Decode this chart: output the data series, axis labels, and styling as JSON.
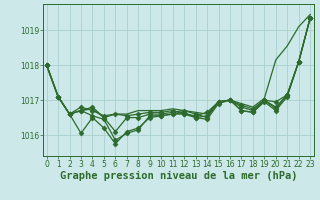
{
  "x": [
    0,
    1,
    2,
    3,
    4,
    5,
    6,
    7,
    8,
    9,
    10,
    11,
    12,
    13,
    14,
    15,
    16,
    17,
    18,
    19,
    20,
    21,
    22,
    23
  ],
  "series_with_markers": [
    [
      1018.0,
      1017.1,
      1016.6,
      1016.8,
      1016.7,
      1016.55,
      1016.6,
      1016.55,
      1016.6,
      1016.65,
      1016.65,
      1016.7,
      1016.6,
      1016.55,
      1016.65,
      1016.95,
      1017.0,
      1016.85,
      1016.75,
      1017.0,
      1016.95,
      1017.15,
      1018.1,
      1019.35
    ],
    [
      1018.0,
      1017.1,
      1016.6,
      1016.05,
      1016.5,
      1016.2,
      1015.75,
      1016.1,
      1016.2,
      1016.5,
      1016.55,
      1016.6,
      1016.6,
      1016.5,
      1016.45,
      1016.9,
      1017.0,
      1016.8,
      1016.7,
      1017.0,
      1016.75,
      1017.15,
      1018.1,
      1019.35
    ],
    [
      1018.0,
      1017.1,
      1016.6,
      1016.7,
      1016.8,
      1016.5,
      1016.1,
      1016.5,
      1016.5,
      1016.6,
      1016.6,
      1016.65,
      1016.7,
      1016.6,
      1016.5,
      1016.95,
      1017.0,
      1016.7,
      1016.65,
      1016.95,
      1016.7,
      1017.1,
      1018.1,
      1019.35
    ],
    [
      1018.0,
      1017.1,
      1016.6,
      1016.7,
      1016.55,
      1016.45,
      1015.85,
      1016.05,
      1016.15,
      1016.55,
      1016.55,
      1016.6,
      1016.65,
      1016.5,
      1016.55,
      1016.95,
      1017.0,
      1016.7,
      1016.65,
      1017.0,
      1016.8,
      1017.15,
      1018.1,
      1019.35
    ]
  ],
  "series_no_marker": [
    1018.0,
    1017.1,
    1016.6,
    1016.7,
    1016.75,
    1016.5,
    1016.6,
    1016.6,
    1016.7,
    1016.7,
    1016.7,
    1016.75,
    1016.7,
    1016.65,
    1016.6,
    1016.95,
    1017.0,
    1016.9,
    1016.8,
    1017.05,
    1018.15,
    1018.55,
    1019.1,
    1019.45
  ],
  "line_color": "#2d6a2d",
  "marker": "D",
  "markersize": 2.5,
  "linewidth": 0.9,
  "bg_color": "#cce8e8",
  "grid_color": "#aacfcf",
  "ylabel_ticks": [
    1016,
    1017,
    1018,
    1019
  ],
  "ylim": [
    1015.4,
    1019.75
  ],
  "xlim": [
    -0.3,
    23.3
  ],
  "xlabel": "Graphe pression niveau de la mer (hPa)",
  "axis_color": "#2d6a2d",
  "tick_fontsize": 5.5,
  "label_fontsize": 7.5
}
